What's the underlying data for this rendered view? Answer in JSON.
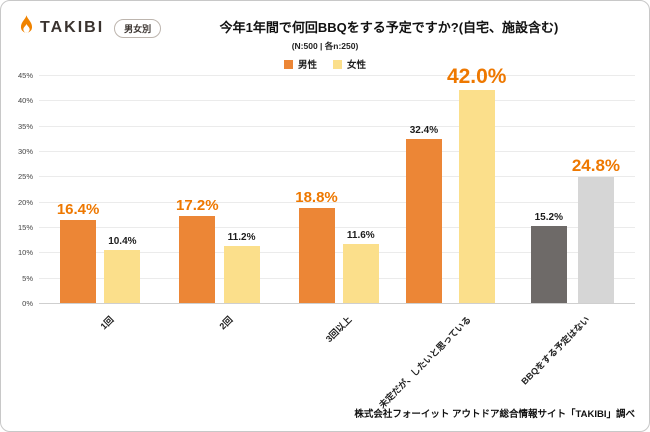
{
  "header": {
    "brand": "TAKIBI",
    "badge": "男女別",
    "title": "今年1年間で何回BBQをする予定ですか?(自宅、施設含む)",
    "subtitle": "(N:500 | 各n:250)"
  },
  "footer": {
    "source": "株式会社フォーイット アウトドア総合情報サイト「TAKIBI」調べ"
  },
  "chart_data": {
    "type": "bar",
    "title": "今年1年間で何回BBQをする予定ですか?(自宅、施設含む)",
    "categories": [
      "1回",
      "2回",
      "3回以上",
      "未定だが、したいと思っている",
      "BBQをする予定はない"
    ],
    "series": [
      {
        "name": "男性",
        "values": [
          16.4,
          17.2,
          18.8,
          32.4,
          15.2
        ],
        "colors": [
          "#EC8636",
          "#EC8636",
          "#EC8636",
          "#EC8636",
          "#6E6A68"
        ],
        "label_styles": [
          "orange-md",
          "orange-md",
          "orange-md",
          "black",
          "black"
        ]
      },
      {
        "name": "女性",
        "values": [
          10.4,
          11.2,
          11.6,
          42.0,
          24.8
        ],
        "colors": [
          "#FBDF8B",
          "#FBDF8B",
          "#FBDF8B",
          "#FBDF8B",
          "#D6D6D6"
        ],
        "label_styles": [
          "black",
          "black",
          "black",
          "orange-xl",
          "orange-lg"
        ]
      }
    ],
    "ylim": [
      0,
      45
    ],
    "ytick_step": 5,
    "ytick_format": "percent",
    "grid": true,
    "legend_position": "top",
    "highlight_color": "#EE7800"
  }
}
